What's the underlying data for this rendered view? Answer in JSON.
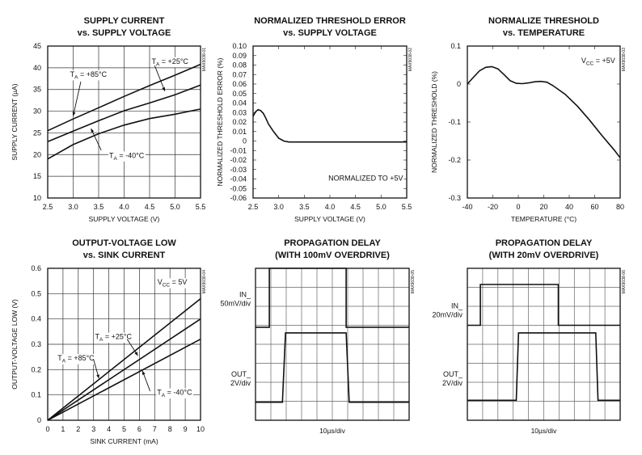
{
  "chart_data": [
    {
      "type": "line",
      "title": "SUPPLY CURRENT",
      "subtitle": "vs. SUPPLY VOLTAGE",
      "xlabel": "SUPPLY VOLTAGE (V)",
      "ylabel": "SUPPLY CURRENT (µA)",
      "side_label": "MAX9038-01",
      "xlim": [
        2.5,
        5.5
      ],
      "ylim": [
        10,
        45
      ],
      "xticks": [
        "2.5",
        "3.0",
        "3.5",
        "4.0",
        "4.5",
        "5.0",
        "5.5"
      ],
      "yticks": [
        "10",
        "15",
        "20",
        "25",
        "30",
        "35",
        "40",
        "45"
      ],
      "grid": true,
      "series": [
        {
          "name": "TA = +85°C",
          "x": [
            2.5,
            3.0,
            3.5,
            4.0,
            4.5,
            5.0,
            5.5
          ],
          "y": [
            25.5,
            28.2,
            30.8,
            33.4,
            35.9,
            38.3,
            40.8
          ]
        },
        {
          "name": "TA = +25°C",
          "x": [
            2.5,
            3.0,
            3.5,
            4.0,
            4.5,
            5.0,
            5.5
          ],
          "y": [
            23.0,
            25.4,
            27.8,
            30.1,
            31.9,
            33.8,
            36.0
          ]
        },
        {
          "name": "TA = -40°C",
          "x": [
            2.5,
            3.0,
            3.5,
            4.0,
            4.5,
            5.0,
            5.5
          ],
          "y": [
            19.0,
            22.3,
            24.8,
            26.8,
            28.3,
            29.3,
            30.5
          ]
        }
      ],
      "annotations": [
        {
          "text": "TA = +85°C",
          "x": 3.3,
          "y": 38.5
        },
        {
          "text": "TA = +25°C",
          "x": 4.9,
          "y": 41.5
        },
        {
          "text": "TA = -40°C",
          "x": 4.05,
          "y": 19.8
        }
      ]
    },
    {
      "type": "line",
      "title": "NORMALIZED THRESHOLD ERROR",
      "subtitle": "vs. SUPPLY VOLTAGE",
      "xlabel": "SUPPLY VOLTAGE (V)",
      "ylabel": "NORMALIZED THRESHOLD ERROR (%)",
      "side_label": "MAX9038-02",
      "xlim": [
        2.5,
        5.5
      ],
      "ylim": [
        -0.06,
        0.1
      ],
      "xticks": [
        "2.5",
        "3.0",
        "3.5",
        "4.0",
        "4.5",
        "5.0",
        "5.5"
      ],
      "yticks": [
        "-0.06",
        "-0.05",
        "-0.04",
        "-0.03",
        "-0.02",
        "-0.01",
        "0",
        "0.01",
        "0.02",
        "0.03",
        "0.04",
        "0.05",
        "0.06",
        "0.07",
        "0.08",
        "0.09",
        "0.10"
      ],
      "grid": false,
      "series": [
        {
          "name": "",
          "x": [
            2.5,
            2.55,
            2.6,
            2.65,
            2.7,
            2.75,
            2.8,
            2.9,
            3.0,
            3.1,
            3.2,
            3.5,
            4.0,
            4.5,
            5.0,
            5.5
          ],
          "y": [
            0.026,
            0.031,
            0.033,
            0.032,
            0.029,
            0.024,
            0.018,
            0.01,
            0.003,
            0.0,
            -0.001,
            -0.001,
            -0.001,
            -0.001,
            -0.001,
            -0.001
          ]
        }
      ],
      "annotations": [
        {
          "text": "NORMALIZED TO +5V",
          "x": 4.7,
          "y": -0.039
        }
      ]
    },
    {
      "type": "line",
      "title": "NORMALIZE THRESHOLD",
      "subtitle": "vs. TEMPERATURE",
      "xlabel": "TEMPERATURE (°C)",
      "ylabel": "NORMALIZED THRESHOLD (%)",
      "side_label": "MAX9038-03",
      "xlim": [
        -40,
        85
      ],
      "ylim": [
        -0.3,
        0.1
      ],
      "xticks": [
        "-40",
        "-20",
        "0",
        "20",
        "40",
        "60",
        "80"
      ],
      "yticks": [
        "-0.3",
        "-0.2",
        "-0.1",
        "0",
        "0.1"
      ],
      "grid": false,
      "series": [
        {
          "name": "",
          "x": [
            -40,
            -35,
            -30,
            -25,
            -20,
            -15,
            -10,
            -5,
            0,
            5,
            10,
            15,
            20,
            25,
            30,
            40,
            50,
            60,
            70,
            80,
            85
          ],
          "y": [
            0.0,
            0.018,
            0.035,
            0.044,
            0.046,
            0.04,
            0.025,
            0.009,
            0.002,
            0.001,
            0.003,
            0.006,
            0.007,
            0.005,
            -0.004,
            -0.027,
            -0.058,
            -0.095,
            -0.135,
            -0.173,
            -0.194
          ]
        }
      ],
      "annotations": [
        {
          "text": "VCC = +5V",
          "x": 67,
          "y": 0.062
        }
      ]
    },
    {
      "type": "line",
      "title": "OUTPUT-VOLTAGE LOW",
      "subtitle": "vs. SINK CURRENT",
      "xlabel": "SINK CURRENT (mA)",
      "ylabel": "OUTPUT-VOLTAGE LOW (V)",
      "side_label": "MAX9038-04",
      "xlim": [
        0,
        10
      ],
      "ylim": [
        0,
        0.6
      ],
      "xticks": [
        "0",
        "1",
        "2",
        "3",
        "4",
        "5",
        "6",
        "7",
        "8",
        "9",
        "10"
      ],
      "yticks": [
        "0",
        "0.1",
        "0.2",
        "0.3",
        "0.4",
        "0.5",
        "0.6"
      ],
      "grid": true,
      "series": [
        {
          "name": "TA = +85°C",
          "x": [
            0,
            10
          ],
          "y": [
            0,
            0.48
          ]
        },
        {
          "name": "TA = +25°C",
          "x": [
            0,
            10
          ],
          "y": [
            0,
            0.4
          ]
        },
        {
          "name": "TA = -40°C",
          "x": [
            0,
            10
          ],
          "y": [
            0,
            0.32
          ]
        }
      ],
      "annotations": [
        {
          "text": "VCC = 5V",
          "x": 8.15,
          "y": 0.545
        },
        {
          "text": "TA = +25°C",
          "x": 4.3,
          "y": 0.33
        },
        {
          "text": "TA = +85°C",
          "x": 1.85,
          "y": 0.245
        },
        {
          "text": "TA = -40°C",
          "x": 8.3,
          "y": 0.11
        }
      ]
    },
    {
      "type": "line",
      "title": "PROPAGATION DELAY",
      "subtitle": "(WITH 100mV OVERDRIVE)",
      "xlabel": "10µs/div",
      "side_label": "MAX9038-05",
      "xlim": [
        0,
        10
      ],
      "ylim": [
        0,
        8
      ],
      "grid": true,
      "channel_labels": [
        {
          "lines": [
            "IN_",
            "50mV/div"
          ],
          "y": 6.5
        },
        {
          "lines": [
            "OUT_",
            "2V/div"
          ],
          "y": 2.3
        }
      ],
      "series": [
        {
          "name": "IN_",
          "x": [
            0,
            0.9,
            0.9,
            5.9,
            5.9,
            10
          ],
          "y": [
            4.9,
            4.9,
            8.0,
            8.0,
            4.9,
            4.9
          ]
        },
        {
          "name": "OUT_",
          "x": [
            0,
            1.75,
            1.95,
            5.9,
            6.1,
            10
          ],
          "y": [
            0.95,
            0.95,
            4.6,
            4.6,
            0.95,
            0.95
          ]
        }
      ]
    },
    {
      "type": "line",
      "title": "PROPAGATION DELAY",
      "subtitle": "(WITH 20mV OVERDRIVE)",
      "xlabel": "10µs/div",
      "side_label": "MAX9038-06",
      "xlim": [
        0,
        10
      ],
      "ylim": [
        0,
        8
      ],
      "grid": true,
      "channel_labels": [
        {
          "lines": [
            "IN_",
            "20mV/div"
          ],
          "y": 5.9
        },
        {
          "lines": [
            "OUT_",
            "2V/div"
          ],
          "y": 2.3
        }
      ],
      "series": [
        {
          "name": "IN_",
          "x": [
            0,
            0.85,
            0.85,
            5.95,
            5.95,
            10
          ],
          "y": [
            5.0,
            5.0,
            7.15,
            7.15,
            5.0,
            5.0
          ]
        },
        {
          "name": "OUT_",
          "x": [
            0,
            3.2,
            3.35,
            8.4,
            8.55,
            10
          ],
          "y": [
            1.05,
            1.05,
            4.6,
            4.6,
            1.05,
            1.05
          ]
        }
      ]
    }
  ]
}
